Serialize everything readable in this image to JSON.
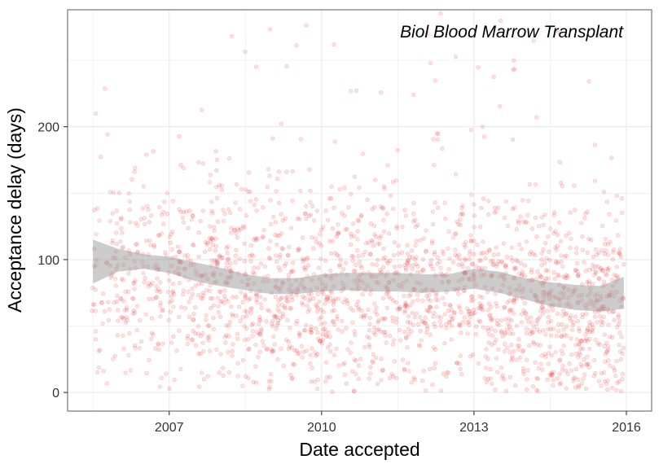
{
  "chart_data": {
    "type": "scatter",
    "title": "",
    "annotation": "Biol Blood Marrow Transplant",
    "xlabel": "Date accepted",
    "ylabel": "Acceptance delay (days)",
    "x_ticks": [
      "2007",
      "2010",
      "2013",
      "2016"
    ],
    "y_ticks": [
      "0",
      "100",
      "200"
    ],
    "xlim": [
      "2005-01-01",
      "2016-07-01"
    ],
    "ylim": [
      -14,
      288
    ],
    "grid": true,
    "legend": "none",
    "colors": {
      "points": "#e8282b",
      "smooth_band": "#999999",
      "grid": "#ebebeb",
      "border": "#7f7f7f"
    },
    "point_opacity": 0.14,
    "approx_point_count": 2200,
    "point_summary_by_year": [
      {
        "year": 2005.5,
        "typical_range": [
          0,
          240
        ],
        "center": 88
      },
      {
        "year": 2007.0,
        "typical_range": [
          0,
          200
        ],
        "center": 85
      },
      {
        "year": 2009.0,
        "typical_range": [
          0,
          200
        ],
        "center": 75
      },
      {
        "year": 2011.0,
        "typical_range": [
          0,
          190
        ],
        "center": 80
      },
      {
        "year": 2013.0,
        "typical_range": [
          0,
          170
        ],
        "center": 80
      },
      {
        "year": 2015.0,
        "typical_range": [
          0,
          170
        ],
        "center": 65
      }
    ],
    "smooth": {
      "x": [
        2005.5,
        2006.0,
        2006.5,
        2007.0,
        2007.5,
        2008.0,
        2008.5,
        2009.0,
        2009.5,
        2010.0,
        2010.5,
        2011.0,
        2011.5,
        2012.0,
        2012.5,
        2013.0,
        2013.5,
        2014.0,
        2014.5,
        2015.0,
        2015.5,
        2015.95
      ],
      "lower": [
        82,
        91,
        93,
        90,
        84,
        80,
        77,
        74,
        74,
        76,
        77,
        76,
        76,
        75,
        76,
        78,
        75,
        70,
        65,
        62,
        61,
        63
      ],
      "upper": [
        115,
        108,
        104,
        102,
        98,
        94,
        89,
        86,
        86,
        89,
        90,
        90,
        90,
        89,
        89,
        93,
        91,
        86,
        83,
        81,
        80,
        87
      ]
    }
  }
}
